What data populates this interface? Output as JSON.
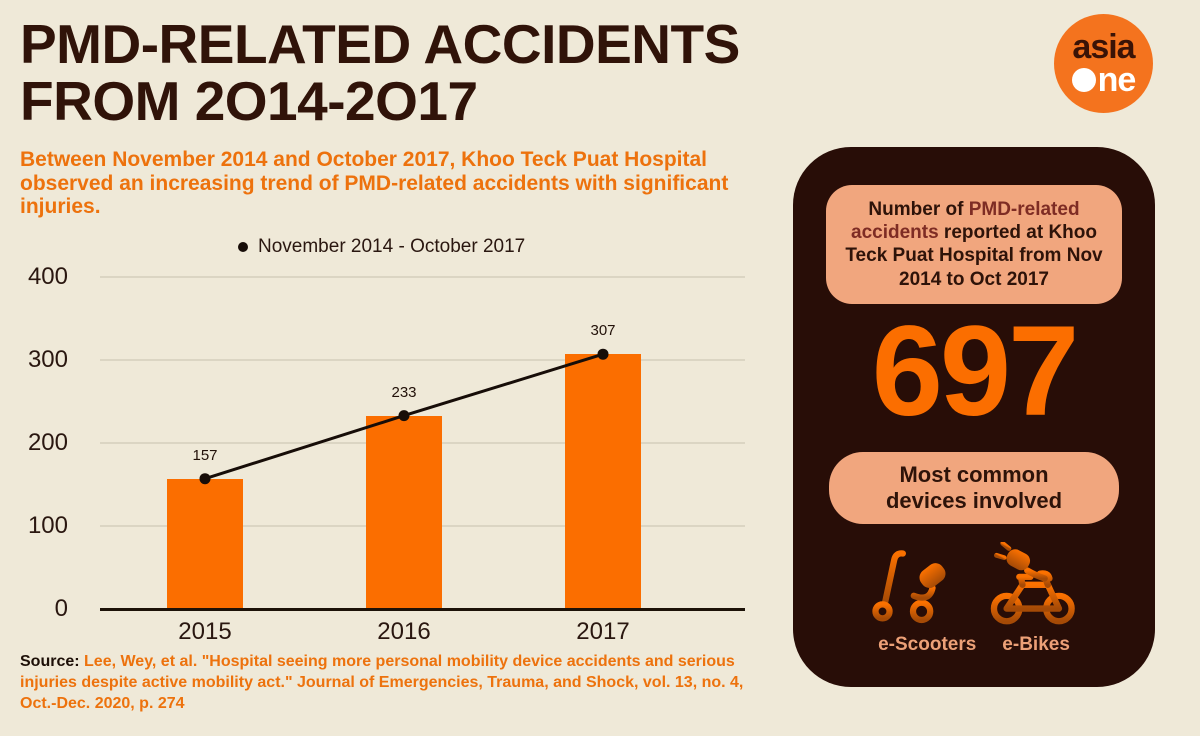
{
  "header": {
    "title_line1": "PMD-RELATED ACCIDENTS",
    "title_line2": "FROM 2O14-2O17",
    "subtitle": "Between November 2014 and October 2017, Khoo Teck Puat Hospital observed an increasing trend of PMD-related accidents with significant injuries."
  },
  "logo": {
    "line1": "asia",
    "line2_rest": "ne"
  },
  "chart_data": {
    "type": "bar",
    "legend": "November 2014 - October 2017",
    "categories": [
      "2015",
      "2016",
      "2017"
    ],
    "values": [
      157,
      233,
      307
    ],
    "yticks": [
      0,
      100,
      200,
      300,
      400
    ],
    "ylim": [
      0,
      400
    ],
    "grid": true,
    "legend_position": "top",
    "bar_color": "#fb6e00",
    "line_color": "#170d08",
    "overlay": "line-with-dots connecting bar tops"
  },
  "source": {
    "label": "Source:",
    "text": " Lee, Wey, et al. \"Hospital seeing more personal mobility device accidents and serious injuries despite active mobility act.\" Journal of Emergencies, Trauma, and Shock, vol. 13, no. 4, Oct.-Dec. 2020, p. 274"
  },
  "side_card": {
    "header_pre": "Number of ",
    "header_highlight": "PMD-related accidents",
    "header_post": " reported at Khoo Teck Puat Hospital from Nov 2014 to Oct 2017",
    "big_number": "697",
    "devices_title": "Most common devices involved",
    "device_labels": [
      "e-Scooters",
      "e-Bikes"
    ]
  },
  "colors": {
    "background": "#efe9d8",
    "title": "#301309",
    "accent_orange": "#ed720d",
    "bar_orange": "#fb6e00",
    "card_bg": "#280d07",
    "pill_peach": "#f1a67e",
    "highlight_maroon": "#7e2c24",
    "label_peach": "#eca077",
    "logo_orange": "#f4731e"
  }
}
